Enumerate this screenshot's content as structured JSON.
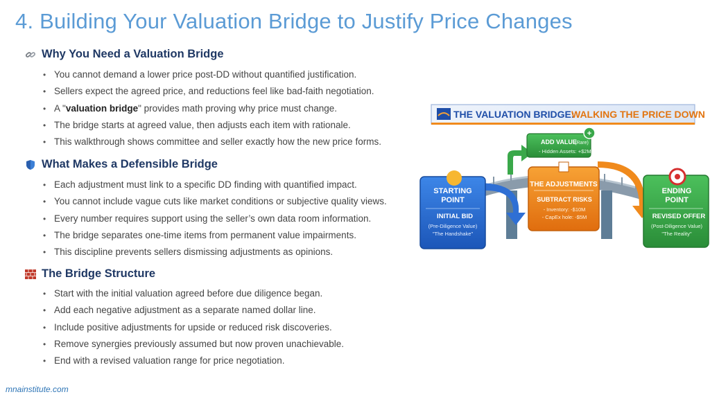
{
  "title": "4. Building Your Valuation Bridge to Justify Price Changes",
  "sections": [
    {
      "icon": "link-icon",
      "heading": "Why You Need a Valuation Bridge",
      "bullets": [
        {
          "pre": "You cannot demand a lower price post-DD without quantified justification.",
          "bold": "",
          "post": ""
        },
        {
          "pre": "Sellers expect the agreed price, and reductions feel like bad-faith negotiation.",
          "bold": "",
          "post": ""
        },
        {
          "pre": "A \"",
          "bold": "valuation bridge",
          "post": "\" provides math proving why price must change."
        },
        {
          "pre": "The bridge starts at agreed value, then adjusts each item with rationale.",
          "bold": "",
          "post": ""
        },
        {
          "pre": "This walkthrough shows committee and seller exactly how the new price forms.",
          "bold": "",
          "post": ""
        }
      ]
    },
    {
      "icon": "shield-icon",
      "heading": "What Makes a Defensible Bridge",
      "bullets": [
        {
          "pre": "Each adjustment must link to a specific DD finding with quantified impact.",
          "bold": "",
          "post": ""
        },
        {
          "pre": "You cannot include vague cuts like market conditions or subjective quality views.",
          "bold": "",
          "post": ""
        },
        {
          "pre": "Every number requires support using the seller’s own data room information.",
          "bold": "",
          "post": ""
        },
        {
          "pre": "The bridge separates one-time items from permanent value impairments.",
          "bold": "",
          "post": ""
        },
        {
          "pre": "This discipline prevents sellers dismissing adjustments as opinions.",
          "bold": "",
          "post": ""
        }
      ]
    },
    {
      "icon": "brick-wall-icon",
      "heading": "The Bridge Structure",
      "bullets": [
        {
          "pre": "Start with the initial valuation agreed before due diligence began.",
          "bold": "",
          "post": ""
        },
        {
          "pre": "Add each negative adjustment as a separate named dollar line.",
          "bold": "",
          "post": ""
        },
        {
          "pre": "Include positive adjustments for upside or reduced risk discoveries.",
          "bold": "",
          "post": ""
        },
        {
          "pre": "Remove synergies previously assumed but now proven unachievable.",
          "bold": "",
          "post": ""
        },
        {
          "pre": "End with a revised valuation range for price negotiation.",
          "bold": "",
          "post": ""
        }
      ]
    }
  ],
  "infographic": {
    "banner": {
      "part1": "THE VALUATION BRIDGE:",
      "part2": "WALKING THE PRICE DOWN"
    },
    "start": {
      "heading1": "STARTING",
      "heading2": "POINT",
      "sub": "INITIAL BID",
      "line1": "(Pre-Diligence Value)",
      "line2": "\"The Handshake\""
    },
    "adjustments": {
      "heading": "THE ADJUSTMENTS",
      "sub": "SUBTRACT RISKS",
      "line1": "- Inventory: -$10M",
      "line2": "- CapEx hole: -$5M"
    },
    "add_value": {
      "heading": "ADD VALUE",
      "heading_note": "(Rare)",
      "line1": "- Hidden Assets: +$2M"
    },
    "end": {
      "heading1": "ENDING",
      "heading2": "POINT",
      "sub": "REVISED OFFER",
      "line1": "(Post-Diligence Value)",
      "line2": "\"The Reality\""
    }
  },
  "footer": "mnainstitute.com",
  "colors": {
    "title": "#5b9bd5",
    "heading": "#1f3864",
    "start_box": "#2e6fd1",
    "adjust_box": "#f08a1c",
    "end_box": "#3aa84a",
    "add_box": "#3aa84a",
    "bridge": "#6f8fa8",
    "banner": "#1f4ea8"
  }
}
